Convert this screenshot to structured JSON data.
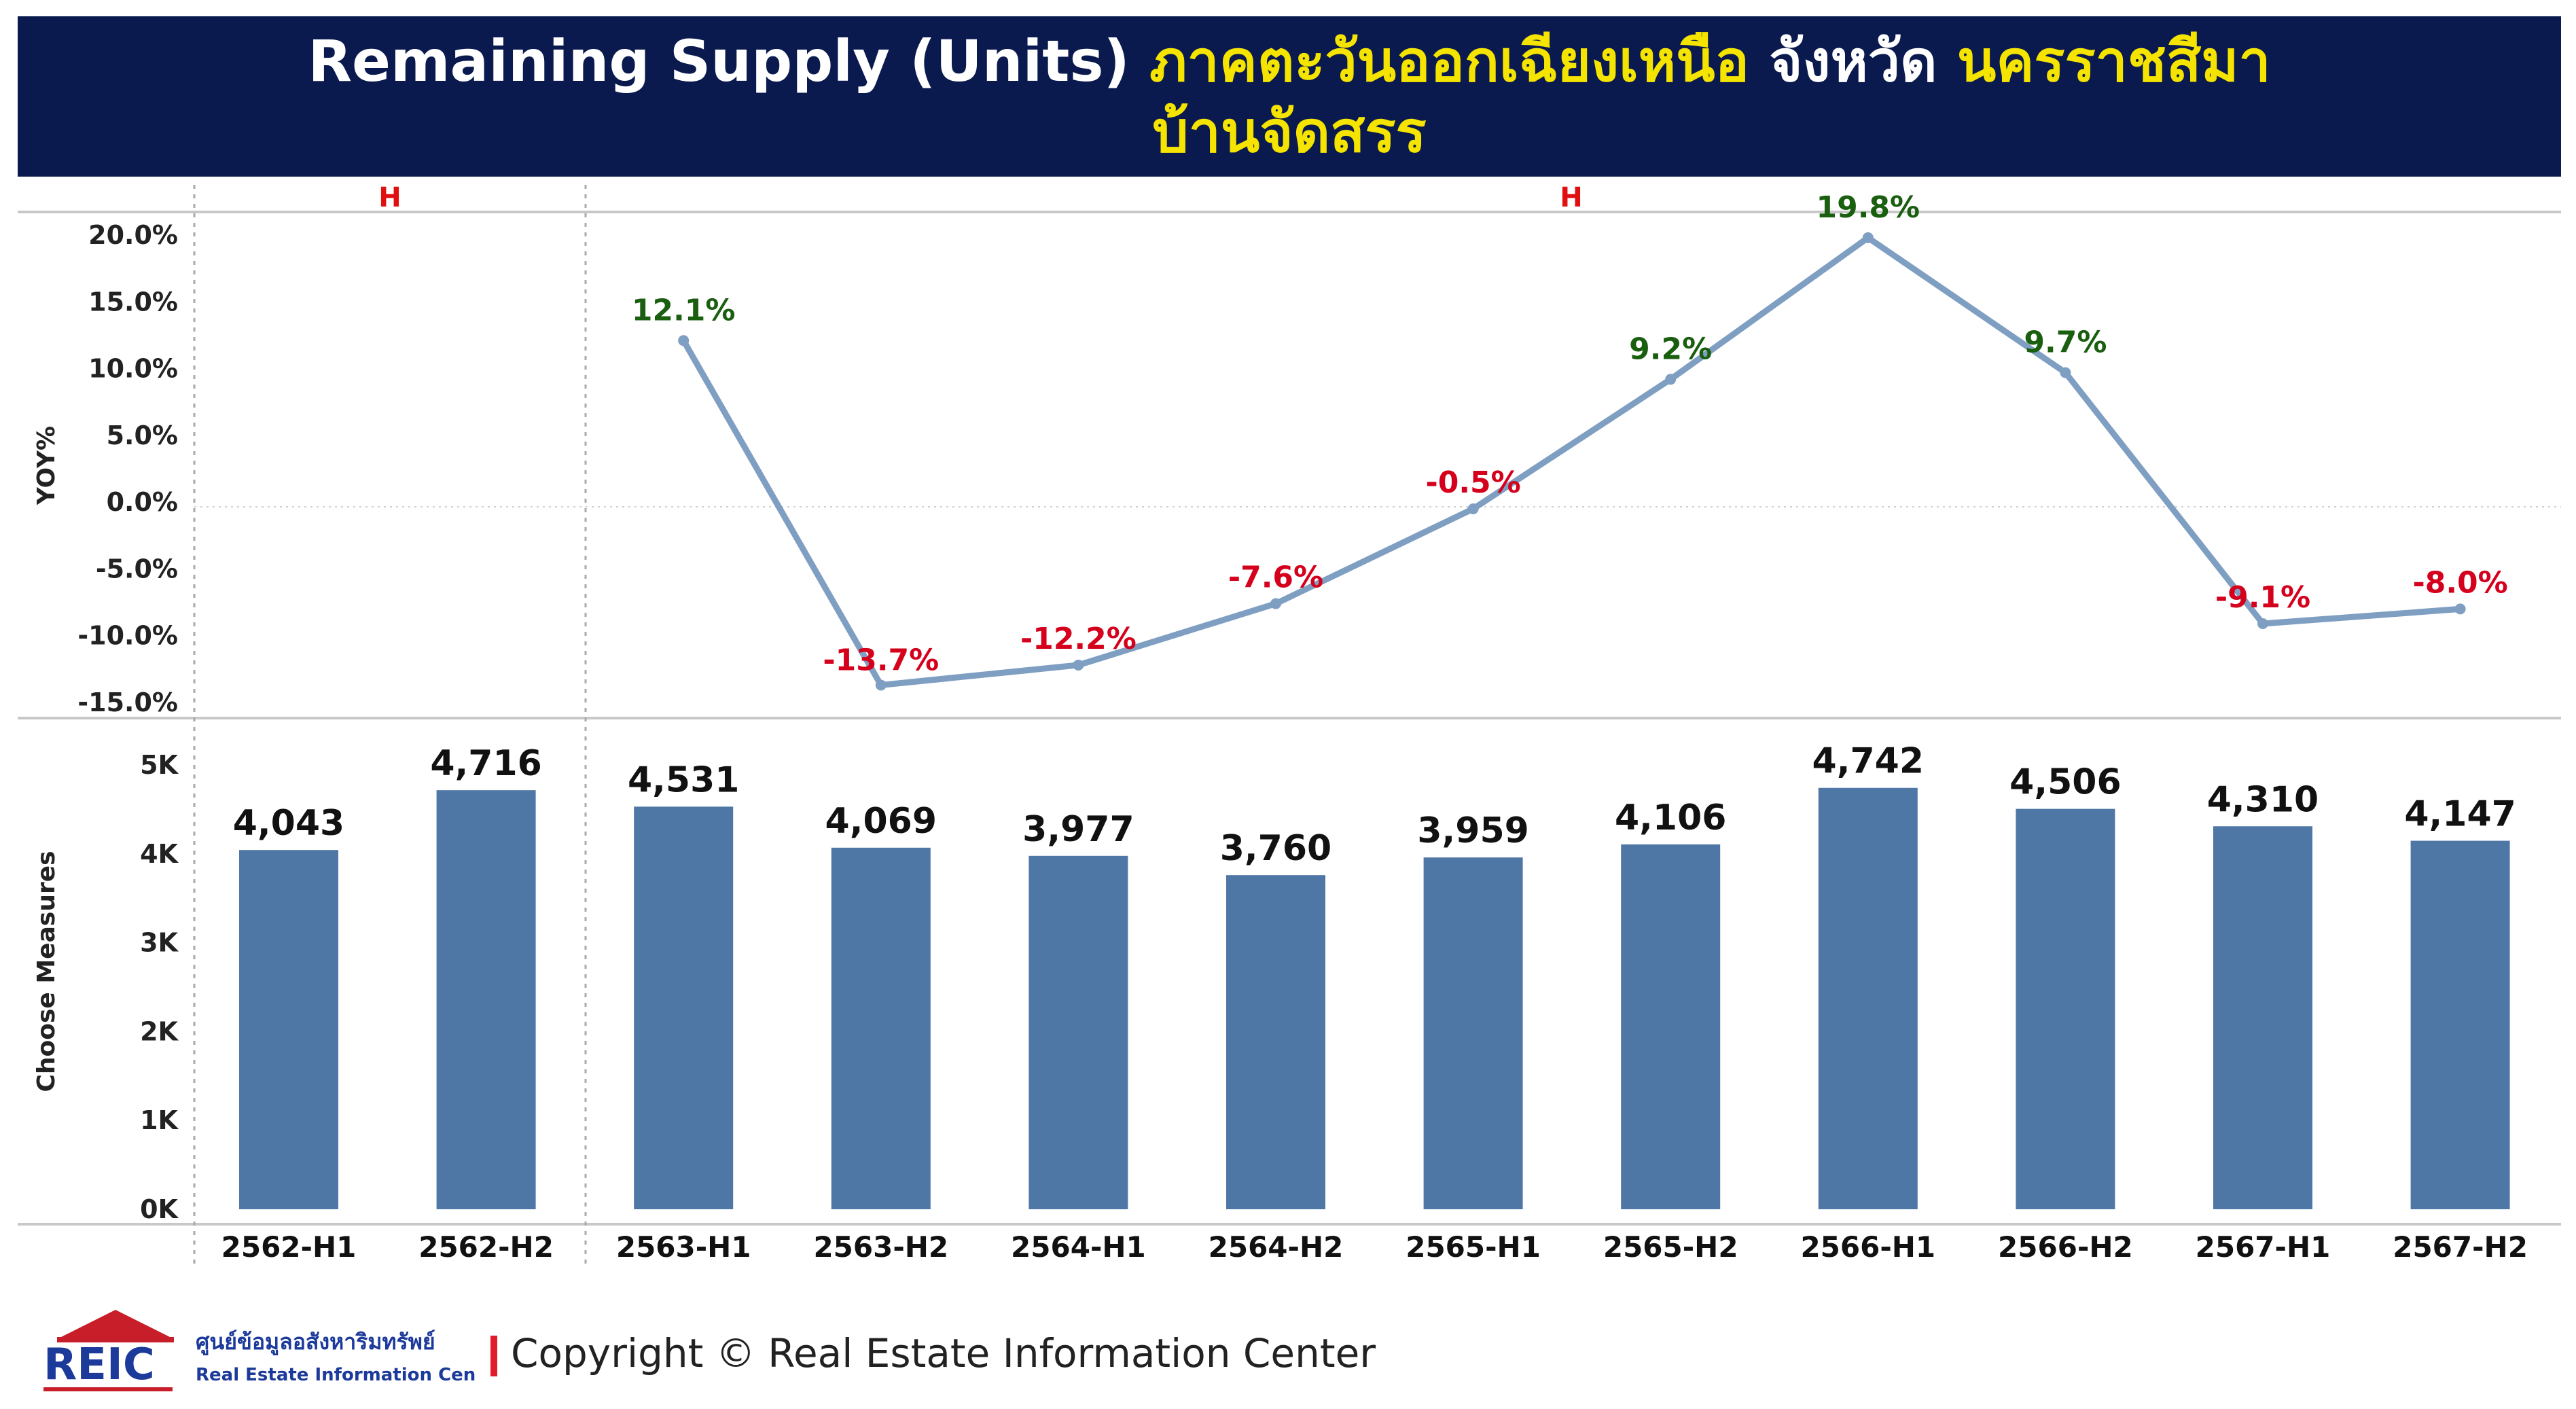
{
  "header": {
    "line1_a": "Remaining Supply (Units)",
    "line1_b": "ภาคตะวันออกเฉียงเหนือ",
    "line1_c": "จังหวัด",
    "line1_d": "นครราชสีมา",
    "line2": "บ้านจัดสรร"
  },
  "footer": {
    "logo_text": "REIC",
    "logo_thai": "ศูนย์ข้อมูลอสังหาริมทรัพย์",
    "logo_eng": "Real Estate Information Center",
    "copyright": "Copyright © Real Estate Information Center"
  },
  "colors": {
    "bar": "#4f77a6",
    "line": "#7f9fc2",
    "positive": "#1a5e10",
    "negative": "#d4001c",
    "header_bg": "#0a1a4f",
    "header_accent": "#f5e400"
  },
  "chart_data": [
    {
      "type": "line",
      "panel": "top",
      "ylabel": "YOY%",
      "section_labels": [
        "H",
        "H"
      ],
      "categories": [
        "2562-H1",
        "2562-H2",
        "2563-H1",
        "2563-H2",
        "2564-H1",
        "2564-H2",
        "2565-H1",
        "2565-H2",
        "2566-H1",
        "2566-H2",
        "2567-H1",
        "2567-H2"
      ],
      "values": [
        null,
        null,
        12.1,
        -13.7,
        -12.2,
        -7.6,
        -0.5,
        9.2,
        19.8,
        9.7,
        -9.1,
        -8.0
      ],
      "labels": [
        null,
        null,
        "12.1%",
        "-13.7%",
        "-12.2%",
        "-7.6%",
        "-0.5%",
        "9.2%",
        "19.8%",
        "9.7%",
        "-9.1%",
        "-8.0%"
      ],
      "ylim": [
        -15,
        20
      ],
      "yticks": [
        "20.0%",
        "15.0%",
        "10.0%",
        "5.0%",
        "0.0%",
        "-5.0%",
        "-10.0%",
        "-15.0%"
      ],
      "grid": true
    },
    {
      "type": "bar",
      "panel": "bottom",
      "ylabel": "Choose Measures",
      "categories": [
        "2562-H1",
        "2562-H2",
        "2563-H1",
        "2563-H2",
        "2564-H1",
        "2564-H2",
        "2565-H1",
        "2565-H2",
        "2566-H1",
        "2566-H2",
        "2567-H1",
        "2567-H2"
      ],
      "values": [
        4043,
        4716,
        4531,
        4069,
        3977,
        3760,
        3959,
        4106,
        4742,
        4506,
        4310,
        4147
      ],
      "labels": [
        "4,043",
        "4,716",
        "4,531",
        "4,069",
        "3,977",
        "3,760",
        "3,959",
        "4,106",
        "4,742",
        "4,506",
        "4,310",
        "4,147"
      ],
      "ylim": [
        0,
        5000
      ],
      "yticks": [
        "5K",
        "4K",
        "3K",
        "2K",
        "1K",
        "0K"
      ]
    }
  ]
}
